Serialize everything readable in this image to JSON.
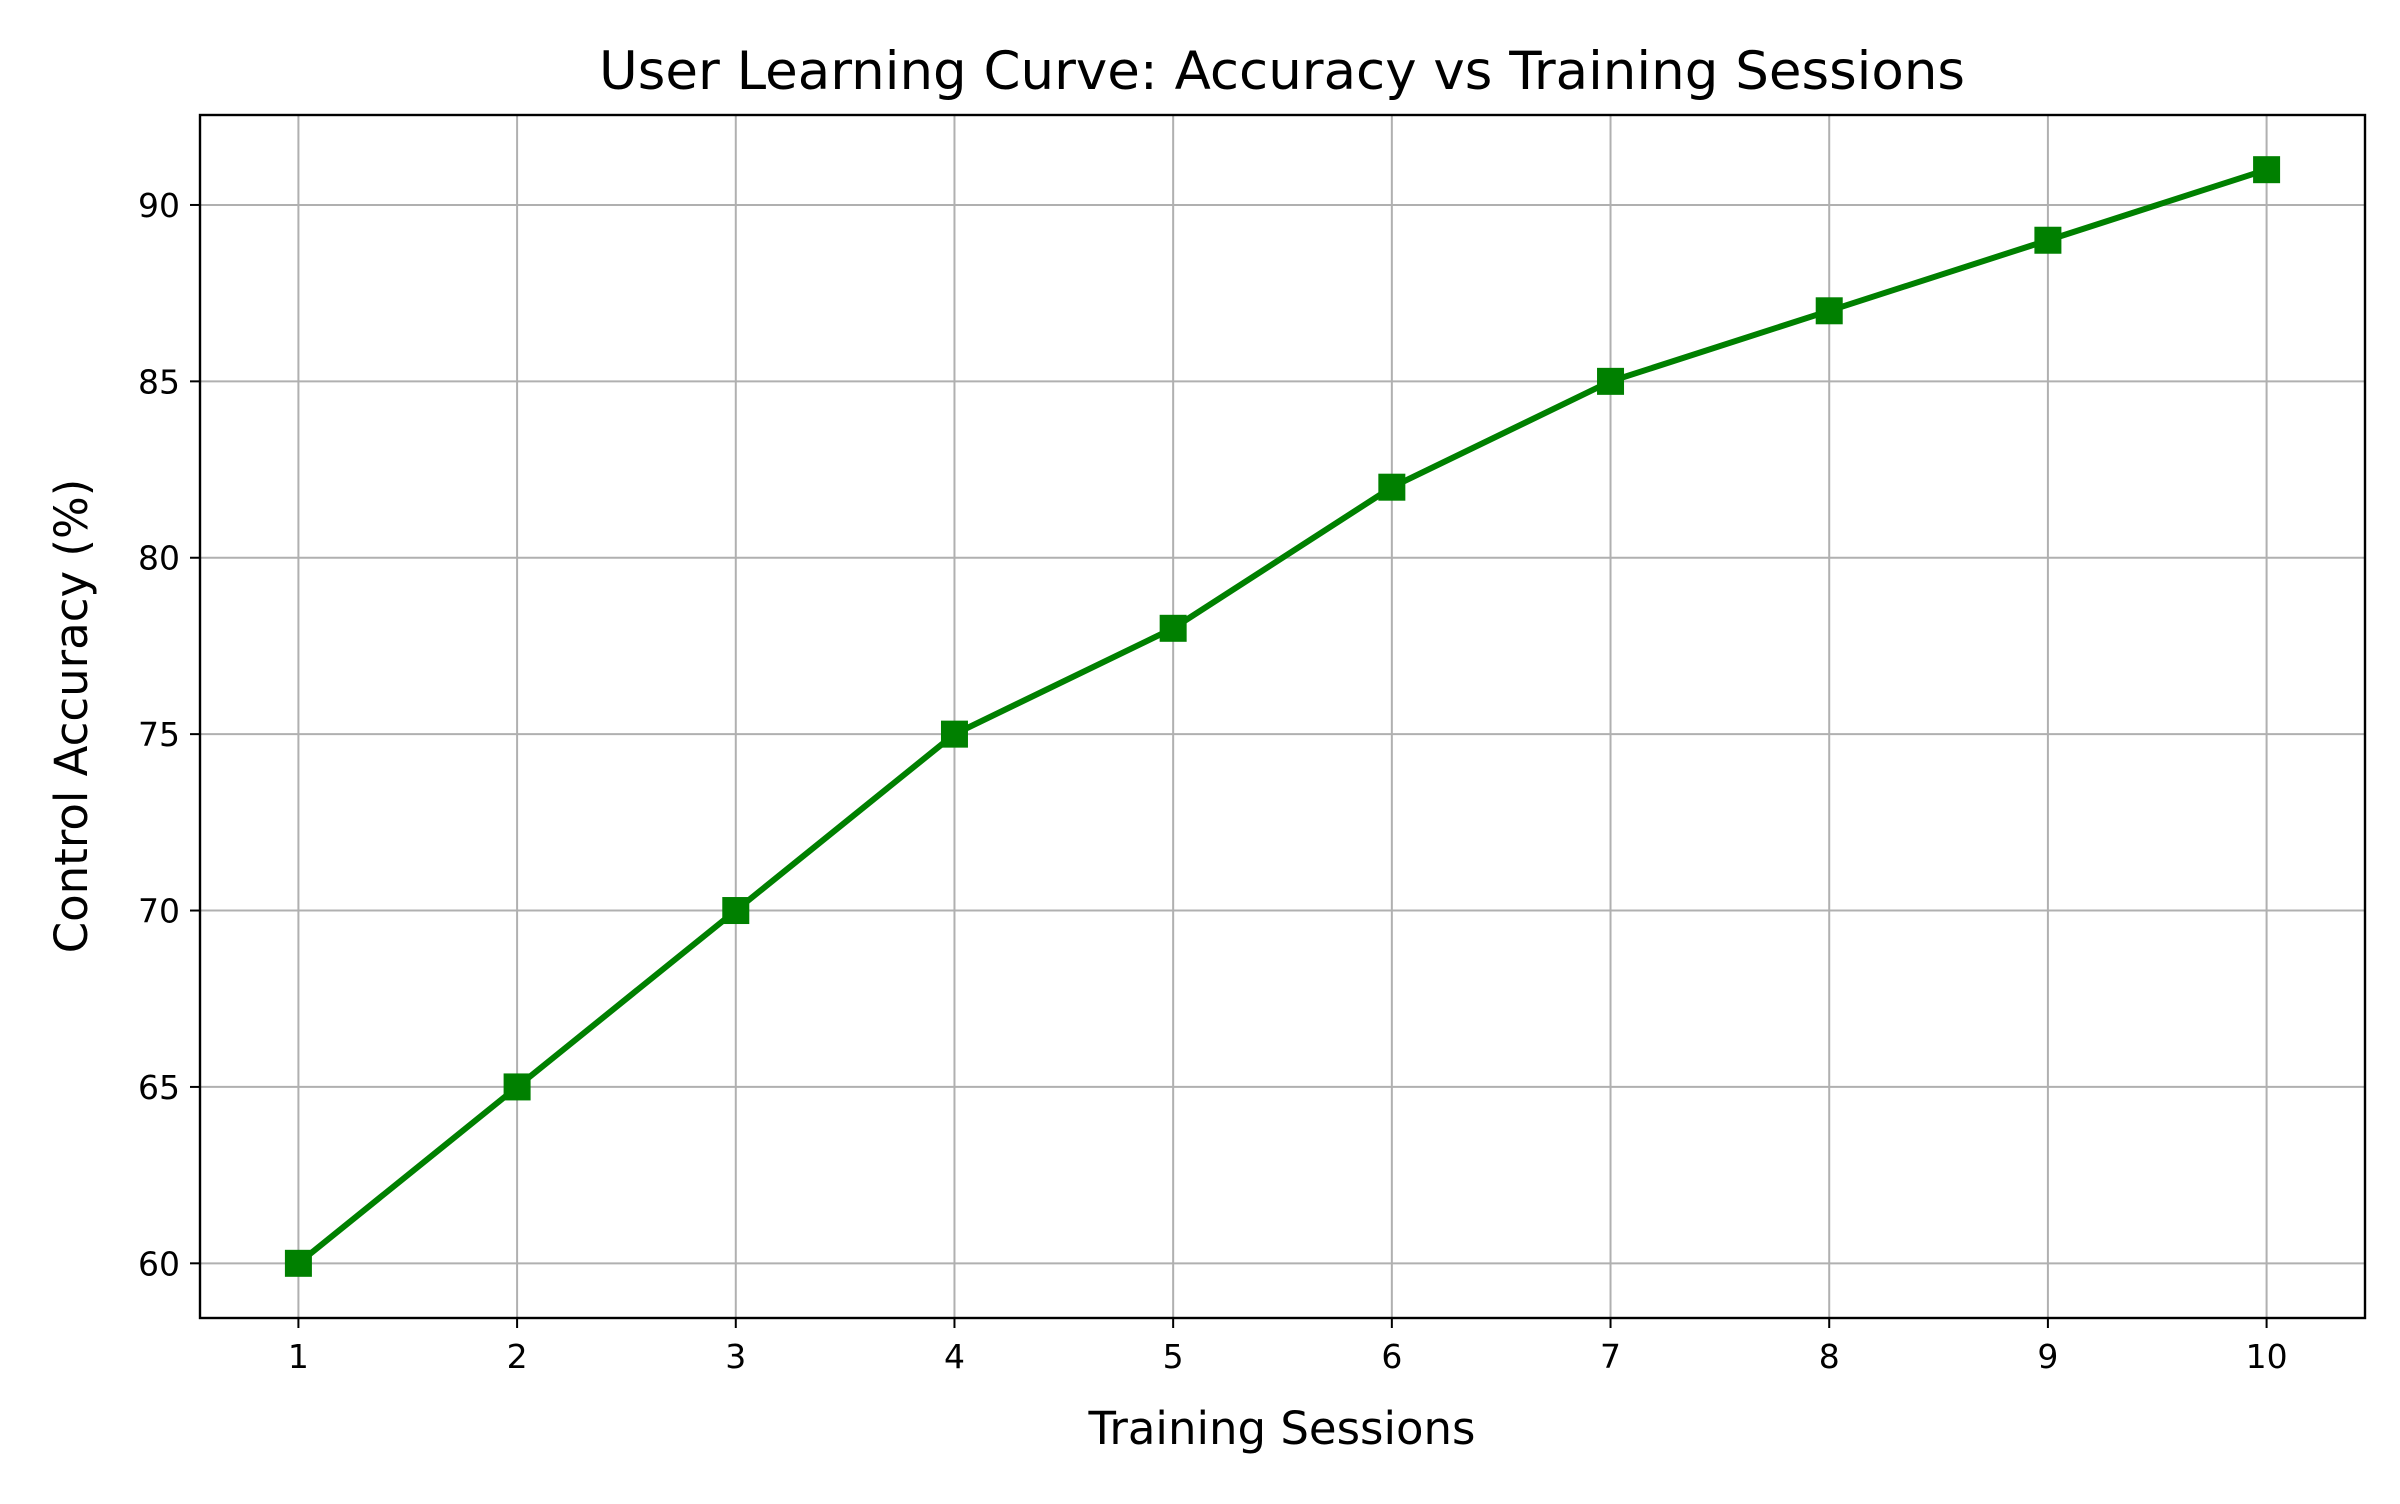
{
  "chart_data": {
    "type": "line",
    "title": "User Learning Curve: Accuracy vs Training Sessions",
    "xlabel": "Training Sessions",
    "ylabel": "Control Accuracy (%)",
    "x": [
      1,
      2,
      3,
      4,
      5,
      6,
      7,
      8,
      9,
      10
    ],
    "series": [
      {
        "values": [
          60,
          65,
          70,
          75,
          78,
          82,
          85,
          87,
          89,
          91
        ],
        "color": "#008000",
        "marker": "square"
      }
    ],
    "xlim": [
      0.55,
      10.45
    ],
    "ylim": [
      58.45,
      92.55
    ],
    "xticks": [
      1,
      2,
      3,
      4,
      5,
      6,
      7,
      8,
      9,
      10
    ],
    "yticks": [
      60,
      65,
      70,
      75,
      80,
      85,
      90
    ],
    "grid": true,
    "grid_color": "#b0b0b0",
    "axes_color": "#000000"
  }
}
